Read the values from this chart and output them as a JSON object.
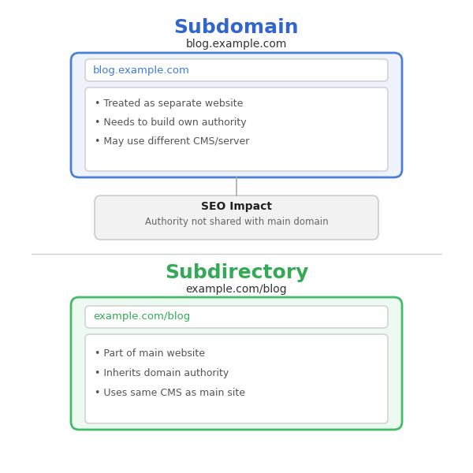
{
  "subdomain_title": "Subdomain",
  "subdomain_title_color": "#3366cc",
  "subdomain_subtitle": "blog.example.com",
  "subdomain_subtitle_color": "#333333",
  "subdomain_url": "blog.example.com",
  "subdomain_url_color": "#3d7bd4",
  "subdomain_bullets": [
    "Treated as separate website",
    "Needs to build own authority",
    "May use different CMS/server"
  ],
  "subdomain_box_bg": "#eef2fb",
  "subdomain_box_border": "#4a7fd4",
  "subdomain_inner_box_bg": "#ffffff",
  "subdomain_inner_box_border": "#cccccc",
  "seo_title": "SEO Impact",
  "seo_subtitle": "Authority not shared with main domain",
  "seo_box_bg": "#f2f2f2",
  "seo_box_border": "#cccccc",
  "divider_color": "#cccccc",
  "subdirectory_title": "Subdirectory",
  "subdirectory_title_color": "#33aa55",
  "subdirectory_subtitle": "example.com/blog",
  "subdirectory_subtitle_color": "#333333",
  "subdirectory_url": "example.com/blog",
  "subdirectory_url_color": "#33aa55",
  "subdirectory_bullets": [
    "Part of main website",
    "Inherits domain authority",
    "Uses same CMS as main site"
  ],
  "subdirectory_box_bg": "#edfaf2",
  "subdirectory_box_border": "#44bb66",
  "subdirectory_inner_box_bg": "#ffffff",
  "subdirectory_inner_box_border": "#cccccc",
  "bullet_color": "#555555",
  "bg_color": "#ffffff",
  "fig_w": 6.0,
  "fig_h": 6.0,
  "dpi": 100
}
